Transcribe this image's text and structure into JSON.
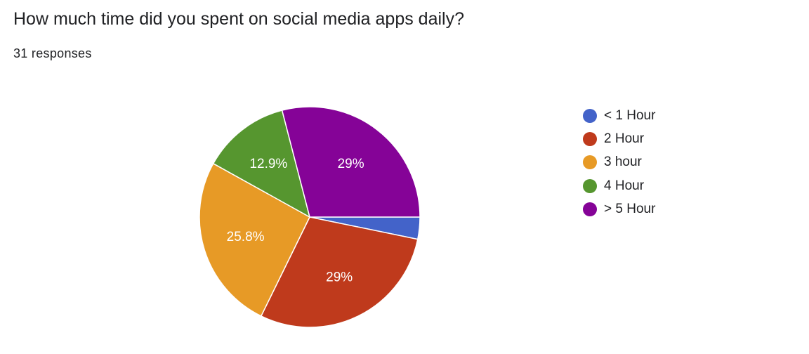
{
  "question": {
    "title": "How much time did you spent on social media apps daily?",
    "responses": "31 responses"
  },
  "chart_data": {
    "type": "pie",
    "title": "How much time did you spent on social media apps daily?",
    "total_responses": 31,
    "categories": [
      "< 1 Hour",
      "2 Hour",
      "3 hour",
      "4 Hour",
      "> 5 Hour"
    ],
    "values": [
      1,
      9,
      8,
      4,
      9
    ],
    "percent_labels": [
      "",
      "29%",
      "25.8%",
      "12.9%",
      "29%"
    ],
    "colors": [
      "#4363c9",
      "#bf3a1c",
      "#e79a26",
      "#56962f",
      "#850397"
    ],
    "legend": "right"
  }
}
